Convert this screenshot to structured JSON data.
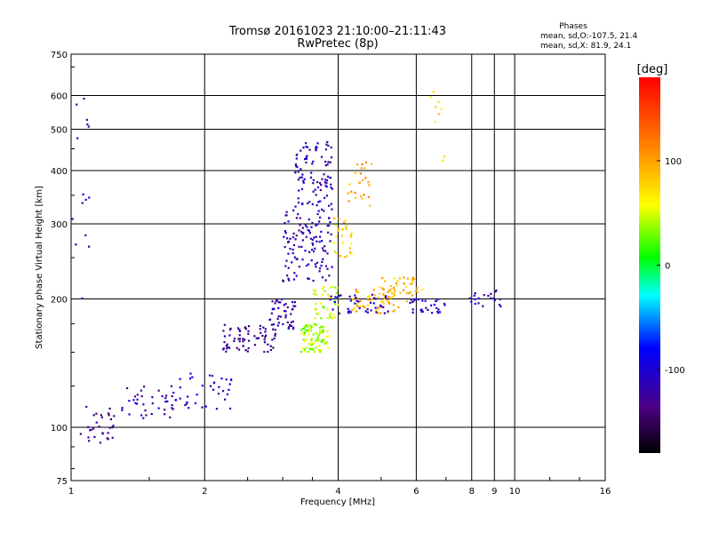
{
  "chart_data": {
    "type": "scatter",
    "title": "Tromsø 20161023 21:10:00–21:11:43",
    "subtitle": "RwPretec (8p)",
    "xlabel": "Frequency [MHz]",
    "ylabel": "Stationary phase Virtual Height [km]",
    "x_scale": "log",
    "y_scale": "log",
    "xlim": [
      1,
      16
    ],
    "ylim": [
      75,
      750
    ],
    "x_ticks": [
      1,
      2,
      4,
      6,
      8,
      9,
      10,
      16
    ],
    "x_tick_labels": [
      "1",
      "2",
      "4",
      "6",
      "8",
      "9",
      "10",
      "16"
    ],
    "y_ticks": [
      75,
      100,
      200,
      300,
      400,
      500,
      600,
      750
    ],
    "y_tick_labels": [
      "75",
      "100",
      "200",
      "300",
      "400",
      "500",
      "600",
      "750"
    ],
    "grid": true,
    "colorbar": {
      "label": "[deg]",
      "range": [
        -180,
        180
      ],
      "ticks": [
        100,
        0,
        -100
      ],
      "tick_labels": [
        "100",
        "0",
        "-100"
      ]
    },
    "stats": {
      "heading": "Phases",
      "line_o": "mean, sd,O:-107.5, 21.4",
      "line_x": "mean, sd,X:  81.9, 24.1"
    },
    "clusters": [
      {
        "x": [
          1.05,
          1.25
        ],
        "y": [
          90,
          115
        ],
        "phase": -130,
        "n": 30
      },
      {
        "x": [
          1.3,
          1.8
        ],
        "y": [
          105,
          125
        ],
        "phase": -120,
        "n": 40
      },
      {
        "x": [
          1.7,
          2.3
        ],
        "y": [
          110,
          135
        ],
        "phase": -100,
        "n": 35
      },
      {
        "x": [
          2.2,
          2.9
        ],
        "y": [
          150,
          175
        ],
        "phase": -125,
        "n": 70
      },
      {
        "x": [
          2.8,
          3.2
        ],
        "y": [
          170,
          200
        ],
        "phase": -120,
        "n": 45
      },
      {
        "x": [
          3.0,
          3.9
        ],
        "y": [
          220,
          330
        ],
        "phase": -115,
        "n": 120
      },
      {
        "x": [
          3.2,
          3.9
        ],
        "y": [
          330,
          470
        ],
        "phase": -110,
        "n": 90
      },
      {
        "x": [
          3.3,
          3.8
        ],
        "y": [
          150,
          175
        ],
        "phase": 40,
        "n": 90
      },
      {
        "x": [
          3.5,
          4.0
        ],
        "y": [
          180,
          215
        ],
        "phase": 50,
        "n": 40
      },
      {
        "x": [
          3.9,
          4.3
        ],
        "y": [
          250,
          310
        ],
        "phase": 80,
        "n": 30
      },
      {
        "x": [
          4.2,
          4.8
        ],
        "y": [
          330,
          420
        ],
        "phase": 100,
        "n": 25
      },
      {
        "x": [
          4.3,
          5.5
        ],
        "y": [
          185,
          215
        ],
        "phase": 95,
        "n": 60
      },
      {
        "x": [
          5.0,
          6.2
        ],
        "y": [
          195,
          225
        ],
        "phase": 90,
        "n": 40
      },
      {
        "x": [
          3.8,
          5.2
        ],
        "y": [
          185,
          205
        ],
        "phase": -110,
        "n": 40
      },
      {
        "x": [
          5.8,
          7.0
        ],
        "y": [
          185,
          200
        ],
        "phase": -105,
        "n": 30
      },
      {
        "x": [
          7.8,
          9.3
        ],
        "y": [
          190,
          210
        ],
        "phase": -115,
        "n": 20
      },
      {
        "x": [
          1.0,
          1.1
        ],
        "y": [
          200,
          600
        ],
        "phase": -120,
        "n": 15
      },
      {
        "x": [
          6.4,
          7.0
        ],
        "y": [
          400,
          620
        ],
        "phase": 70,
        "n": 10
      }
    ]
  }
}
